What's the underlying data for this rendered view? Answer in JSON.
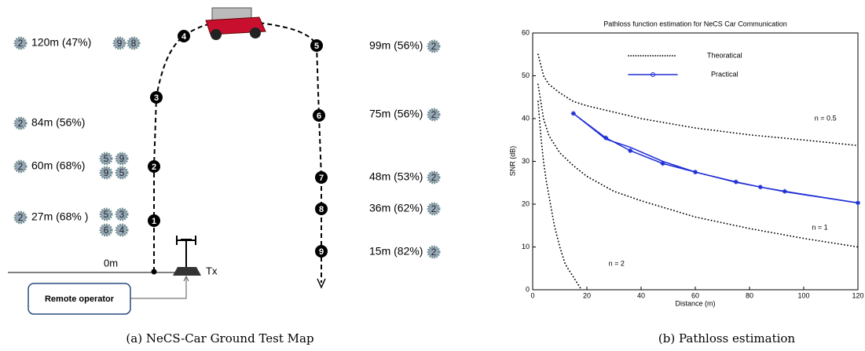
{
  "map": {
    "caption": "(a) NeCS-Car Ground Test Map",
    "waypoints": [
      "1",
      "2",
      "3",
      "4",
      "5",
      "6",
      "7",
      "8",
      "9"
    ],
    "left_rows": [
      {
        "badges_before": [
          "2"
        ],
        "label": "120m (47%)",
        "badges_after": [
          "9",
          "8"
        ]
      },
      {
        "badges_before": [
          "2"
        ],
        "label": "84m (56%)",
        "badges_after": []
      },
      {
        "badges_before": [
          "2"
        ],
        "label": "60m (68%)",
        "badges_after": [
          "5",
          "9",
          "9",
          "5"
        ]
      },
      {
        "badges_before": [
          "2"
        ],
        "label": "27m (68% )",
        "badges_after": [
          "5",
          "3",
          "6",
          "4"
        ]
      }
    ],
    "right_rows": [
      {
        "label": "99m (56%)",
        "badges_after": [
          "2"
        ]
      },
      {
        "label": "75m (56%)",
        "badges_after": [
          "2"
        ]
      },
      {
        "label": "48m (53%)",
        "badges_after": [
          "2"
        ]
      },
      {
        "label": "36m (62%)",
        "badges_after": [
          "2"
        ]
      },
      {
        "label": "15m (82%)",
        "badges_after": [
          "2"
        ]
      }
    ],
    "zero_label": "0m",
    "tx_label": "Tx",
    "operator_label": "Remote operator"
  },
  "chart_data": {
    "type": "line",
    "title": "Pathloss function estimation for NeCS Car Communication",
    "x_label": "Distance (m)",
    "y_label": "SNR (dB)",
    "xlim": [
      0,
      120
    ],
    "ylim": [
      0,
      60
    ],
    "xticks": [
      0,
      20,
      40,
      60,
      80,
      100,
      120
    ],
    "yticks": [
      0,
      10,
      20,
      30,
      40,
      50,
      60
    ],
    "series": [
      {
        "name": "Theoratical",
        "annotation": "n = 0.5",
        "color": "#000000",
        "style": "dotted",
        "x": [
          2,
          4,
          6,
          10,
          15,
          20,
          30,
          40,
          60,
          80,
          100,
          120
        ],
        "values": [
          55,
          50,
          48,
          46,
          44,
          43,
          41.5,
          40,
          37.8,
          36.2,
          35,
          33.7
        ]
      },
      {
        "annotation": "n = 1",
        "color": "#000000",
        "style": "dotted",
        "x": [
          2,
          4,
          6,
          10,
          15,
          20,
          30,
          40,
          60,
          80,
          100,
          120
        ],
        "values": [
          48,
          40,
          36,
          32,
          29,
          26.5,
          23,
          20.8,
          17,
          14.3,
          12,
          10
        ]
      },
      {
        "annotation": "n = 2",
        "color": "#000000",
        "style": "dotted",
        "x": [
          2,
          3,
          4,
          5,
          6,
          8,
          10,
          12,
          15,
          18
        ],
        "values": [
          44,
          36,
          30,
          25.5,
          22,
          15,
          10,
          6,
          3,
          0
        ]
      },
      {
        "name": "Practical",
        "color": "#1f2fd6",
        "style": "solid",
        "markers": true,
        "x": [
          15,
          27,
          36,
          48,
          60,
          75,
          84,
          93,
          120
        ],
        "values": [
          41.2,
          35.5,
          32.5,
          29.5,
          27.5,
          25.2,
          24,
          23,
          20.3
        ]
      },
      {
        "color": "#1f2fd6",
        "style": "solid",
        "x": [
          15,
          27,
          36,
          48,
          60,
          75,
          84,
          93,
          120
        ],
        "values": [
          41.2,
          35.2,
          33.3,
          30,
          27.5,
          25.1,
          24,
          22.9,
          20.3
        ]
      }
    ]
  },
  "chart_caption": "(b) Pathloss estimation"
}
